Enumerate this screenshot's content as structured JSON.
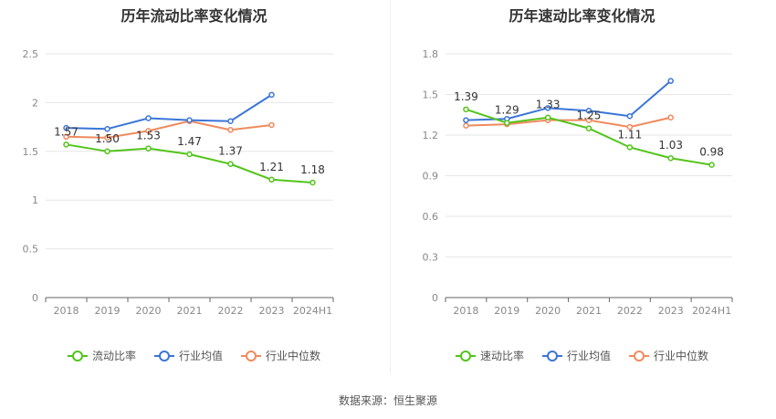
{
  "source": "数据来源：恒生聚源",
  "chart_data": [
    {
      "type": "line",
      "title": "历年流动比率变化情况",
      "categories": [
        "2018",
        "2019",
        "2020",
        "2021",
        "2022",
        "2023",
        "2024H1"
      ],
      "ylim": [
        0,
        2.5
      ],
      "yticks": [
        "0",
        "0.5",
        "1",
        "1.5",
        "2",
        "2.5"
      ],
      "grid": true,
      "legend_position": "bottom",
      "series": [
        {
          "name": "流动比率",
          "color": "#52c41a",
          "values": [
            1.57,
            1.5,
            1.53,
            1.47,
            1.37,
            1.21,
            1.18
          ],
          "labels": [
            "1.57",
            "1.50",
            "1.53",
            "1.47",
            "1.37",
            "1.21",
            "1.18"
          ]
        },
        {
          "name": "行业均值",
          "color": "#3a75d8",
          "values": [
            1.74,
            1.73,
            1.84,
            1.82,
            1.81,
            2.08,
            null
          ]
        },
        {
          "name": "行业中位数",
          "color": "#f08a5d",
          "values": [
            1.65,
            1.64,
            1.71,
            1.81,
            1.72,
            1.77,
            null
          ]
        }
      ]
    },
    {
      "type": "line",
      "title": "历年速动比率变化情况",
      "categories": [
        "2018",
        "2019",
        "2020",
        "2021",
        "2022",
        "2023",
        "2024H1"
      ],
      "ylim": [
        0,
        1.8
      ],
      "yticks": [
        "0",
        "0.3",
        "0.6",
        "0.9",
        "1.2",
        "1.5",
        "1.8"
      ],
      "grid": true,
      "legend_position": "bottom",
      "series": [
        {
          "name": "速动比率",
          "color": "#52c41a",
          "values": [
            1.39,
            1.29,
            1.33,
            1.25,
            1.11,
            1.03,
            0.98
          ],
          "labels": [
            "1.39",
            "1.29",
            "1.33",
            "1.25",
            "1.11",
            "1.03",
            "0.98"
          ]
        },
        {
          "name": "行业均值",
          "color": "#3a75d8",
          "values": [
            1.31,
            1.32,
            1.4,
            1.38,
            1.34,
            1.6,
            null
          ]
        },
        {
          "name": "行业中位数",
          "color": "#f08a5d",
          "values": [
            1.27,
            1.28,
            1.31,
            1.31,
            1.26,
            1.33,
            null
          ]
        }
      ]
    }
  ]
}
